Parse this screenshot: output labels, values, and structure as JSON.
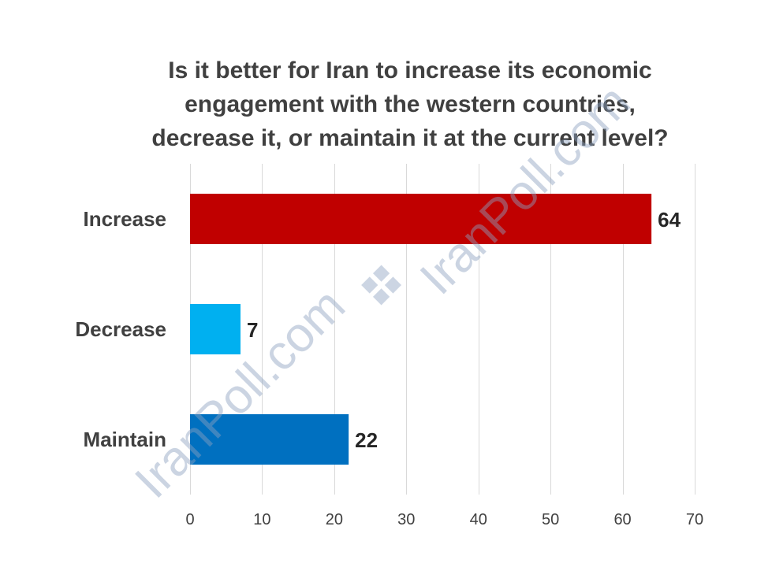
{
  "chart_data": {
    "type": "bar",
    "orientation": "horizontal",
    "title_lines": [
      "Is it better for Iran to increase its economic",
      "engagement with the western countries,",
      "decrease it, or maintain it at the current level?"
    ],
    "categories": [
      "Increase",
      "Decrease",
      "Maintain"
    ],
    "values": [
      64,
      7,
      22
    ],
    "colors": [
      "#c00000",
      "#00b0f0",
      "#0070c0"
    ],
    "xlim": [
      0,
      70
    ],
    "x_ticks": [
      0,
      10,
      20,
      30,
      40,
      50,
      60,
      70
    ],
    "grid": "vertical",
    "legend": "none",
    "data_labels": [
      "64",
      "7",
      "22"
    ]
  },
  "watermark": {
    "text_1": "IranPoll.com",
    "text_2": "IranPoll.com"
  }
}
